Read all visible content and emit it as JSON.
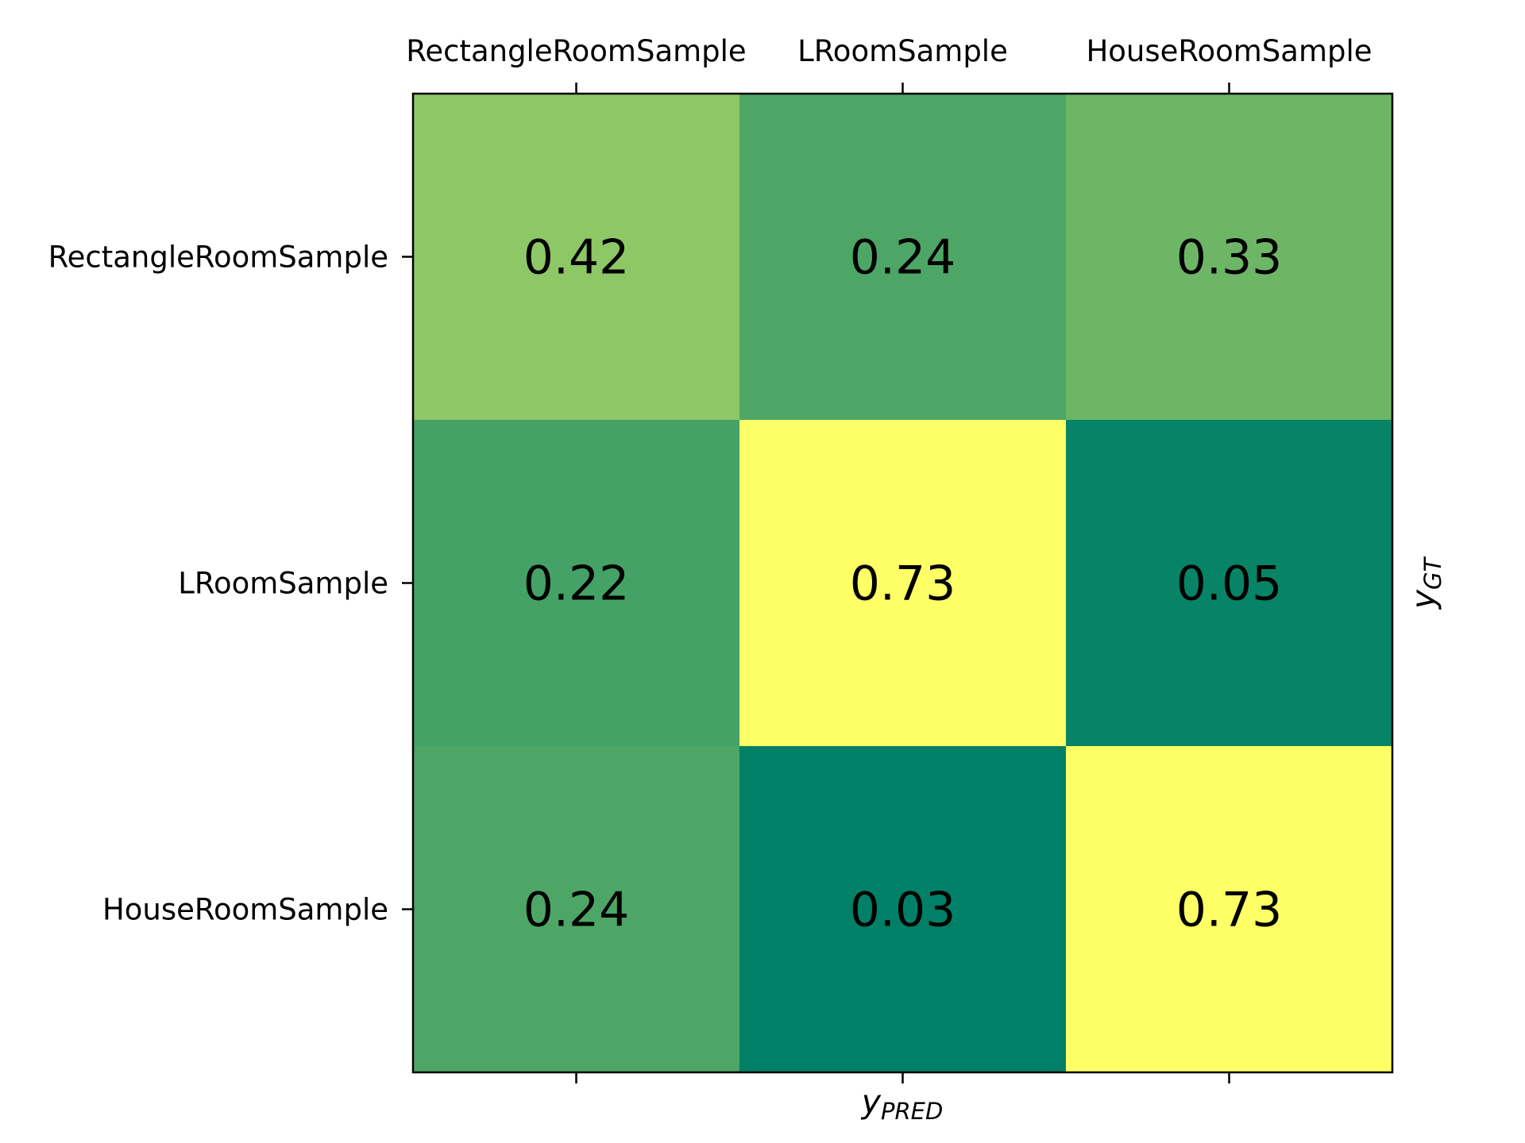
{
  "chart_data": {
    "type": "heatmap",
    "x_categories": [
      "RectangleRoomSample",
      "LRoomSample",
      "HouseRoomSample"
    ],
    "y_categories": [
      "RectangleRoomSample",
      "LRoomSample",
      "HouseRoomSample"
    ],
    "values": [
      [
        0.42,
        0.24,
        0.33
      ],
      [
        0.22,
        0.73,
        0.05
      ],
      [
        0.24,
        0.03,
        0.73
      ]
    ],
    "cell_labels": [
      [
        "0.42",
        "0.24",
        "0.33"
      ],
      [
        "0.22",
        "0.73",
        "0.05"
      ],
      [
        "0.24",
        "0.03",
        "0.73"
      ]
    ],
    "xlabel": {
      "symbol": "y",
      "subscript": "PRED"
    },
    "ylabel": {
      "symbol": "y",
      "subscript": "GT"
    },
    "x_tick_position": "top",
    "colormap": "summer",
    "colormap_low": "#008066",
    "colormap_high": "#ffff66",
    "vrange": [
      0.03,
      0.73
    ],
    "colorbar": false,
    "grid": false
  }
}
